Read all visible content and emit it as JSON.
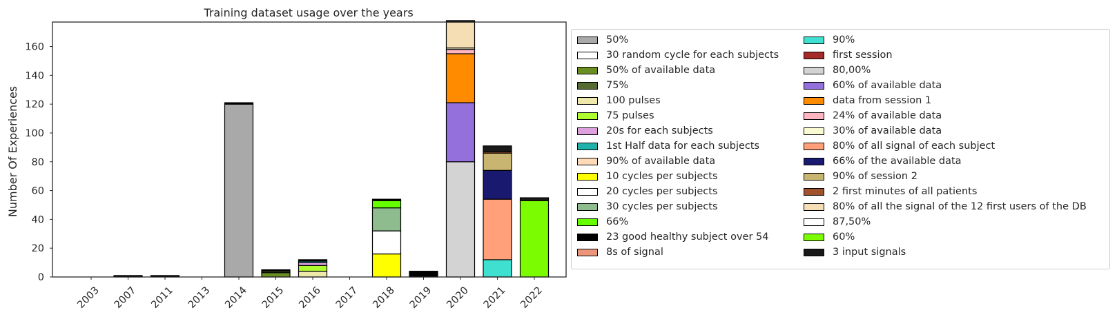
{
  "chart_data": {
    "type": "bar",
    "stacked": true,
    "title": "Training dataset usage over the years",
    "xlabel": "",
    "ylabel": "Number Of Experiences",
    "ylim": [
      0,
      177
    ],
    "yticks": [
      0,
      20,
      40,
      60,
      80,
      100,
      120,
      140,
      160
    ],
    "categories": [
      "2003",
      "2007",
      "2011",
      "2013",
      "2014",
      "2015",
      "2016",
      "2017",
      "2018",
      "2019",
      "2020",
      "2021",
      "2022"
    ],
    "legend_position": "outside-right",
    "grid": false,
    "series": [
      {
        "name": "50%",
        "color": "#a9a9a9",
        "values": [
          0,
          0,
          0,
          0,
          120,
          0,
          0,
          0,
          0,
          0,
          0,
          0,
          0
        ]
      },
      {
        "name": "30 random cycle for each subjects",
        "color": "#ffffff",
        "values": [
          0,
          0,
          0,
          0,
          0,
          0,
          0,
          0,
          0,
          0,
          0,
          0,
          0
        ]
      },
      {
        "name": "50% of available data",
        "color": "#6b8e23",
        "values": [
          0,
          0,
          0,
          0,
          0,
          3,
          0,
          0,
          0,
          0,
          0,
          0,
          0
        ]
      },
      {
        "name": "75%",
        "color": "#556b2f",
        "values": [
          0,
          0,
          0,
          0,
          0,
          1,
          0,
          0,
          0,
          0,
          0,
          0,
          0
        ]
      },
      {
        "name": "100 pulses",
        "color": "#eee8aa",
        "values": [
          0,
          0,
          0,
          0,
          0,
          0,
          4,
          0,
          0,
          0,
          0,
          0,
          0
        ]
      },
      {
        "name": "75 pulses",
        "color": "#adff2f",
        "values": [
          0,
          0,
          0,
          0,
          0,
          0,
          4,
          0,
          0,
          0,
          0,
          0,
          0
        ]
      },
      {
        "name": "20s for each subjects",
        "color": "#dda0dd",
        "values": [
          0,
          0,
          0,
          0,
          0,
          0,
          2,
          0,
          0,
          0,
          0,
          0,
          0
        ]
      },
      {
        "name": "1st Half data for each subjects",
        "color": "#20b2aa",
        "values": [
          0,
          0,
          0,
          0,
          0,
          0,
          1,
          0,
          0,
          0,
          0,
          0,
          0
        ]
      },
      {
        "name": "90% of available data",
        "color": "#ffdab9",
        "values": [
          0,
          0,
          0,
          0,
          0,
          0,
          0,
          0,
          0,
          0,
          0,
          0,
          0
        ]
      },
      {
        "name": "10 cycles per subjects",
        "color": "#ffff00",
        "values": [
          0,
          0,
          0,
          0,
          0,
          0,
          0,
          0,
          16,
          0,
          0,
          0,
          0
        ]
      },
      {
        "name": "20 cycles per subjects",
        "color": "#ffffff",
        "values": [
          0,
          0,
          0,
          0,
          0,
          0,
          0,
          0,
          16,
          0,
          0,
          0,
          0
        ]
      },
      {
        "name": "30 cycles per subjects",
        "color": "#8fbc8f",
        "values": [
          0,
          0,
          0,
          0,
          0,
          0,
          0,
          0,
          16,
          0,
          0,
          0,
          0
        ]
      },
      {
        "name": "66%",
        "color": "#66ff00",
        "values": [
          0,
          0,
          0,
          0,
          0,
          0,
          0,
          0,
          5,
          0,
          0,
          0,
          0
        ]
      },
      {
        "name": "23 good healthy subject over 54",
        "color": "#000000",
        "values": [
          0,
          1,
          1,
          0,
          1,
          1,
          1,
          0,
          1,
          4,
          0,
          0,
          0
        ]
      },
      {
        "name": "8s of signal",
        "color": "#e9967a",
        "values": [
          0,
          0,
          0,
          0,
          0,
          0,
          0,
          0,
          0,
          0,
          0,
          0,
          0
        ]
      },
      {
        "name": "90%",
        "color": "#40e0d0",
        "values": [
          0,
          0,
          0,
          0,
          0,
          0,
          0,
          0,
          0,
          0,
          0,
          12,
          0
        ]
      },
      {
        "name": "first session",
        "color": "#a52a2a",
        "values": [
          0,
          0,
          0,
          0,
          0,
          0,
          0,
          0,
          0,
          0,
          0,
          0,
          0
        ]
      },
      {
        "name": "80,00%",
        "color": "#d3d3d3",
        "values": [
          0,
          0,
          0,
          0,
          0,
          0,
          0,
          0,
          0,
          0,
          80,
          0,
          0
        ]
      },
      {
        "name": "60% of available data",
        "color": "#9370db",
        "values": [
          0,
          0,
          0,
          0,
          0,
          0,
          0,
          0,
          0,
          0,
          41,
          0,
          0
        ]
      },
      {
        "name": "data from session 1",
        "color": "#ff8c00",
        "values": [
          0,
          0,
          0,
          0,
          0,
          0,
          0,
          0,
          0,
          0,
          34,
          0,
          0
        ]
      },
      {
        "name": "24% of available data",
        "color": "#ffb6c1",
        "values": [
          0,
          0,
          0,
          0,
          0,
          0,
          0,
          0,
          0,
          0,
          3,
          0,
          0
        ]
      },
      {
        "name": "30% of available data",
        "color": "#fafad2",
        "values": [
          0,
          0,
          0,
          0,
          0,
          0,
          0,
          0,
          0,
          0,
          1,
          0,
          0
        ]
      },
      {
        "name": "80% of all signal of each subject",
        "color": "#ffa07a",
        "values": [
          0,
          0,
          0,
          0,
          0,
          0,
          0,
          0,
          0,
          0,
          0,
          42,
          0
        ]
      },
      {
        "name": "66% of the available data",
        "color": "#191970",
        "values": [
          0,
          0,
          0,
          0,
          0,
          0,
          0,
          0,
          0,
          0,
          0,
          20,
          0
        ]
      },
      {
        "name": "90% of session 2",
        "color": "#c8b571",
        "values": [
          0,
          0,
          0,
          0,
          0,
          0,
          0,
          0,
          0,
          0,
          0,
          12,
          0
        ]
      },
      {
        "name": "2 first minutes of all patients",
        "color": "#a0522d",
        "values": [
          0,
          0,
          0,
          0,
          0,
          0,
          0,
          0,
          0,
          0,
          0,
          1,
          0
        ]
      },
      {
        "name": "80% of all the signal of the 12 first users of the DB",
        "color": "#f5deb3",
        "values": [
          0,
          0,
          0,
          0,
          0,
          0,
          0,
          0,
          0,
          0,
          18,
          0,
          0
        ]
      },
      {
        "name": "87,50%",
        "color": "#ffffff",
        "values": [
          0,
          0,
          0,
          0,
          0,
          0,
          0,
          0,
          0,
          0,
          0,
          0,
          0
        ]
      },
      {
        "name": "60%",
        "color": "#7cfc00",
        "values": [
          0,
          0,
          0,
          0,
          0,
          0,
          0,
          0,
          0,
          0,
          0,
          0,
          53
        ]
      },
      {
        "name": "3 input signals",
        "color": "#1a1a1a",
        "values": [
          0,
          0,
          0,
          0,
          0,
          0,
          0,
          0,
          0,
          0,
          1,
          4,
          2
        ]
      }
    ]
  }
}
